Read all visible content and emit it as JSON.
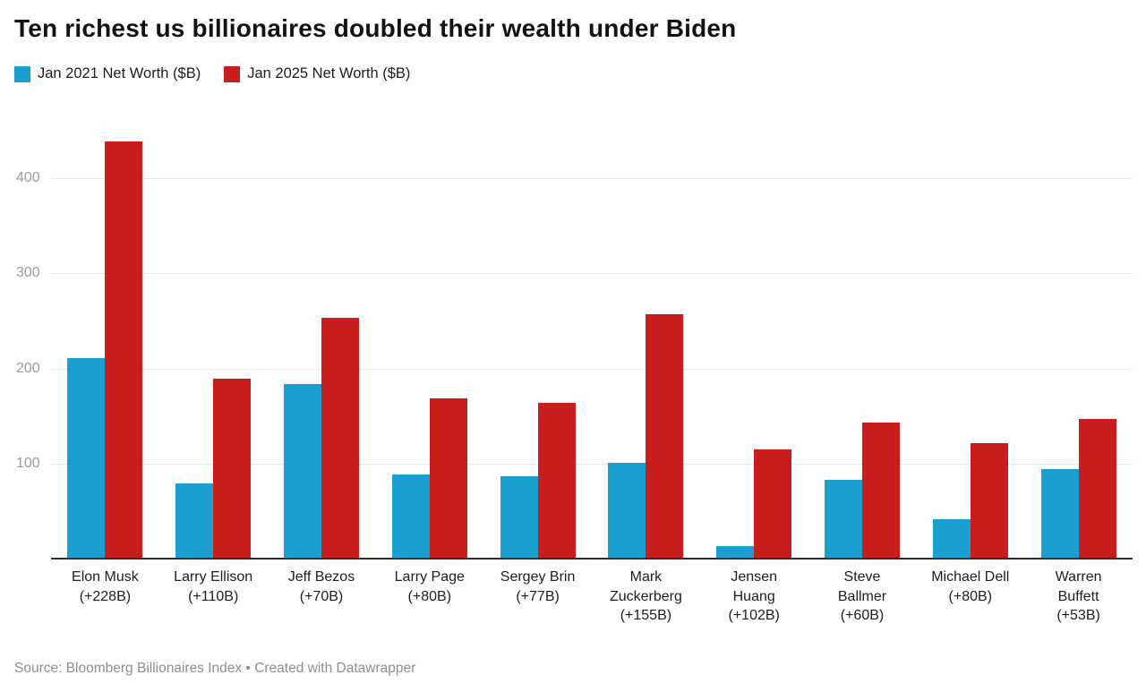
{
  "header": {
    "title": "Ten richest us billionaires doubled their wealth under Biden"
  },
  "footer": {
    "source_line": "Source: Bloomberg Billionaires Index • Created with Datawrapper"
  },
  "colors": {
    "series_2021": "#1a9fce",
    "series_2025": "#c71e1d",
    "gridline": "#e7e7e7",
    "axis_line": "#2b2b2b",
    "tick_label": "#9c9c9c"
  },
  "chart_data": {
    "type": "bar",
    "title": "Ten richest us billionaires doubled their wealth under Biden",
    "xlabel": "",
    "ylabel": "",
    "ylim": [
      0,
      446
    ],
    "yticks": [
      100,
      200,
      300,
      400
    ],
    "grid": "horizontal",
    "legend_position": "top-left",
    "categories": [
      "Elon Musk (+228B)",
      "Larry Ellison (+110B)",
      "Jeff Bezos (+70B)",
      "Larry Page (+80B)",
      "Sergey Brin (+77B)",
      "Mark Zuckerberg (+155B)",
      "Jensen Huang (+102B)",
      "Steve Ballmer (+60B)",
      "Michael Dell (+80B)",
      "Warren Buffett (+53B)"
    ],
    "category_label_lines": [
      [
        "Elon Musk",
        "(+228B)"
      ],
      [
        "Larry Ellison",
        "(+110B)"
      ],
      [
        "Jeff Bezos",
        "(+70B)"
      ],
      [
        "Larry Page",
        "(+80B)"
      ],
      [
        "Sergey Brin",
        "(+77B)"
      ],
      [
        "Mark",
        "Zuckerberg",
        "(+155B)"
      ],
      [
        "Jensen",
        "Huang",
        "(+102B)"
      ],
      [
        "Steve",
        "Ballmer",
        "(+60B)"
      ],
      [
        "Michael Dell",
        "(+80B)"
      ],
      [
        "Warren",
        "Buffett",
        "(+53B)"
      ]
    ],
    "series": [
      {
        "name": "Jan 2021 Net Worth ($B)",
        "color": "#1a9fce",
        "values": [
          209,
          78,
          182,
          87,
          85,
          100,
          12,
          82,
          40,
          93
        ]
      },
      {
        "name": "Jan 2025 Net Worth ($B)",
        "color": "#c71e1d",
        "values": [
          437,
          188,
          252,
          167,
          162,
          255,
          114,
          142,
          120,
          146
        ]
      }
    ]
  }
}
